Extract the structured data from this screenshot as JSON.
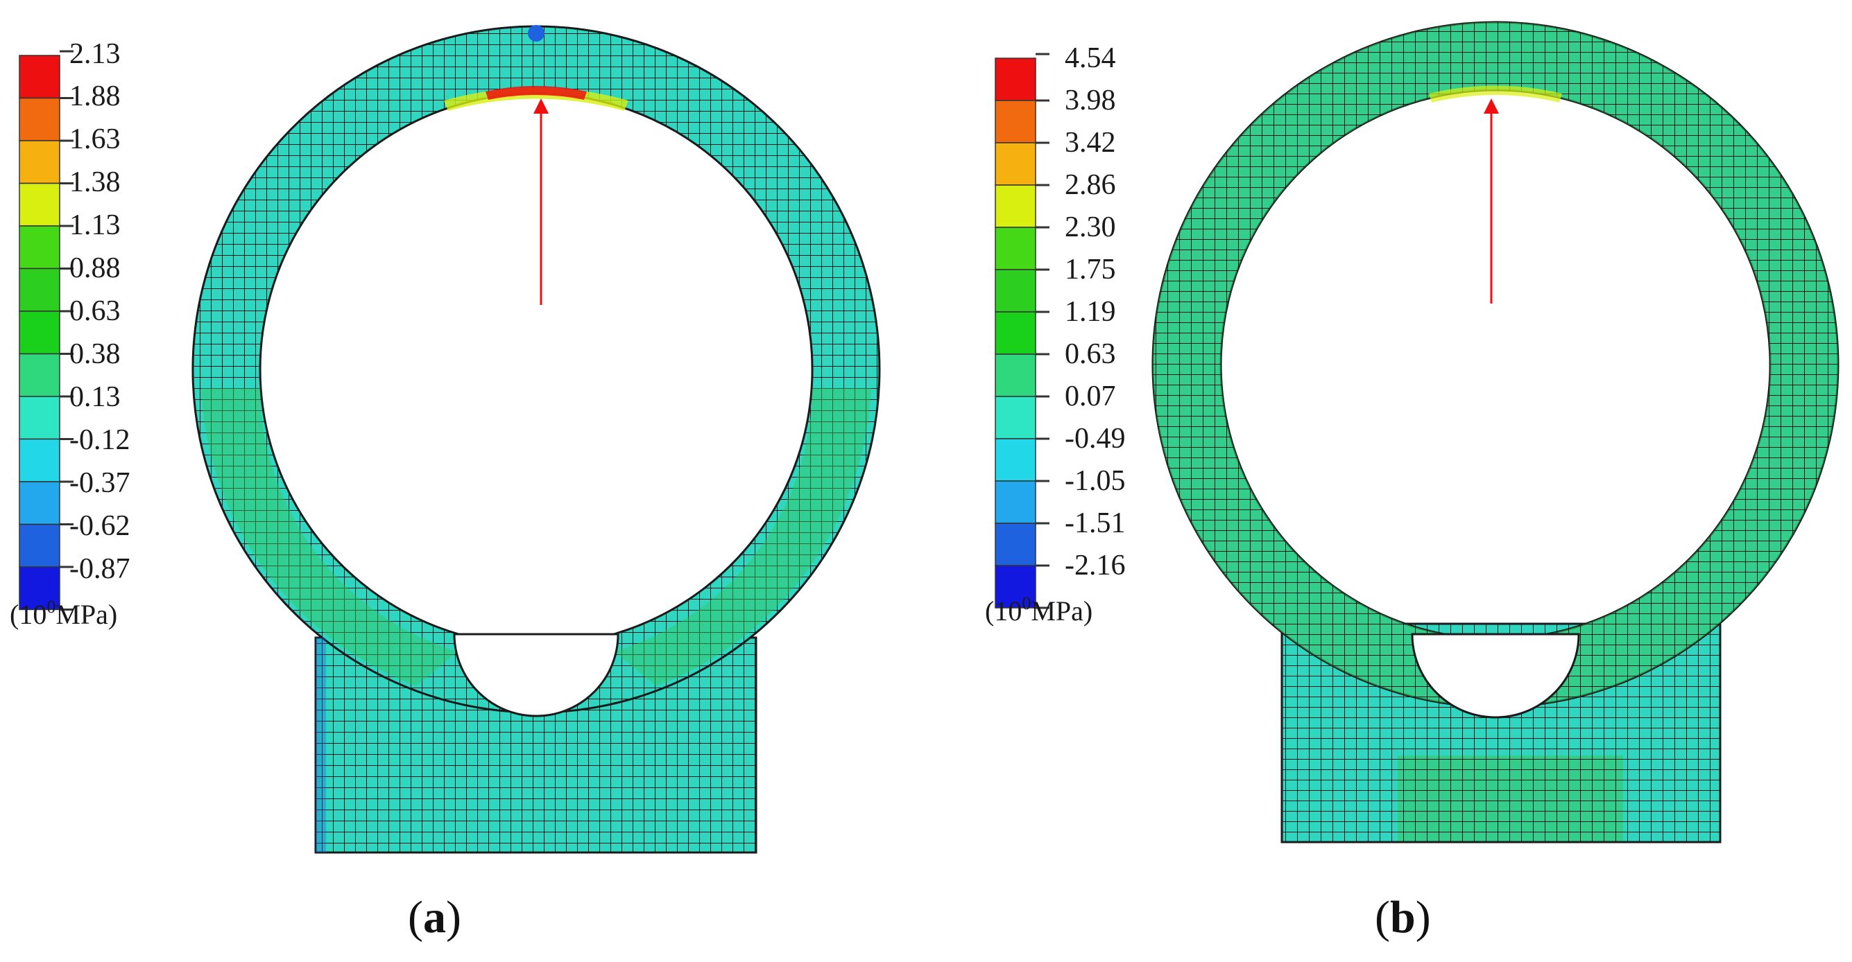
{
  "panels": [
    {
      "id": "a",
      "label_open": "(",
      "label_letter": "a",
      "label_close": ")",
      "unit_prefix": "(10",
      "unit_exp": "0",
      "unit_suffix": "MPa)",
      "scale_values": [
        "2.13",
        "1.88",
        "1.63",
        "1.38",
        "1.13",
        "0.88",
        "0.63",
        "0.38",
        "0.13",
        "-0.12",
        "-0.37",
        "-0.62",
        "-0.87"
      ]
    },
    {
      "id": "b",
      "label_open": "(",
      "label_letter": "b",
      "label_close": ")",
      "unit_prefix": "(10",
      "unit_exp": "0",
      "unit_suffix": "MPa)",
      "scale_values": [
        "4.54",
        "3.98",
        "3.42",
        "2.86",
        "2.30",
        "1.75",
        "1.19",
        "0.63",
        "0.07",
        "-0.49",
        "-1.05",
        "-1.51",
        "-2.16"
      ]
    }
  ],
  "colors": {
    "scale_bands": [
      "#ee1010",
      "#f26a10",
      "#f6b010",
      "#d8ef10",
      "#44d817",
      "#2ccf1f",
      "#19d11a",
      "#2fd87c",
      "#2fe6c4",
      "#22d8e8",
      "#23a8ee",
      "#1e62e0",
      "#1218e0"
    ],
    "mesh_fill": "#2fd7c0",
    "mesh_green": "#37c560",
    "mesh_line": "#1b1b1b",
    "arrow": "#ee1010"
  },
  "icons": {
    "arrow": "red-arrow-pointer"
  }
}
